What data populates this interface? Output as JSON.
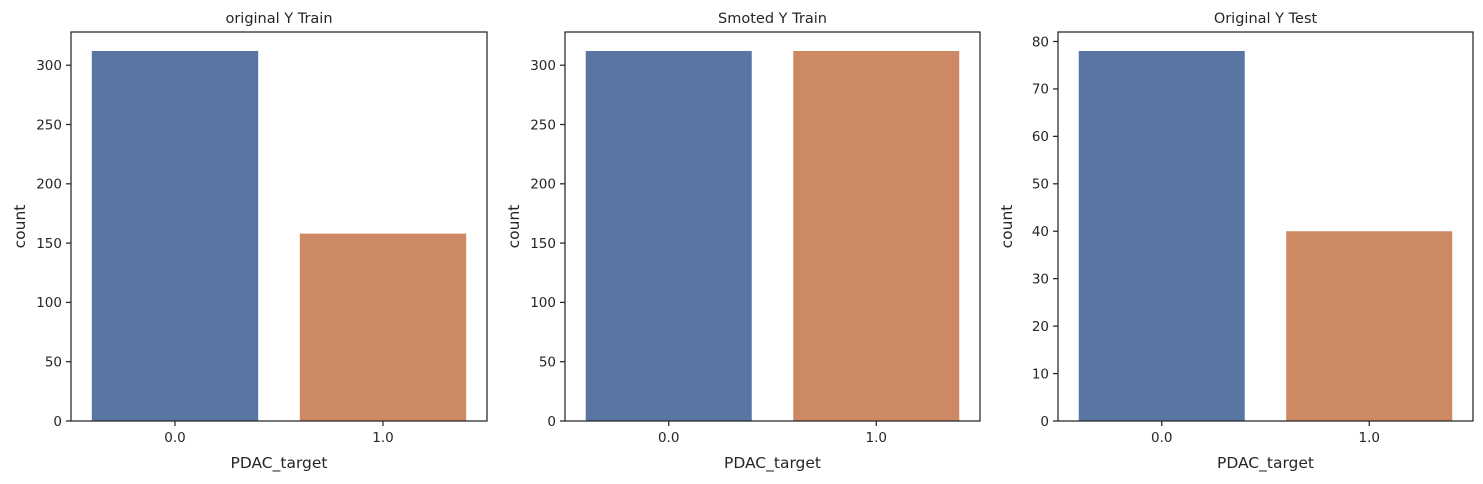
{
  "chart_data": [
    {
      "type": "bar",
      "title": "original Y Train",
      "xlabel": "PDAC_target",
      "ylabel": "count",
      "categories": [
        "0.0",
        "1.0"
      ],
      "values": [
        312,
        158
      ],
      "ylim": [
        0,
        328
      ],
      "yticks": [
        0,
        50,
        100,
        150,
        200,
        250,
        300
      ],
      "colors": [
        "#5975a4",
        "#cc8963"
      ],
      "grid": false
    },
    {
      "type": "bar",
      "title": "Smoted Y Train",
      "xlabel": "PDAC_target",
      "ylabel": "count",
      "categories": [
        "0.0",
        "1.0"
      ],
      "values": [
        312,
        312
      ],
      "ylim": [
        0,
        328
      ],
      "yticks": [
        0,
        50,
        100,
        150,
        200,
        250,
        300
      ],
      "colors": [
        "#5975a4",
        "#cc8963"
      ],
      "grid": false
    },
    {
      "type": "bar",
      "title": "Original Y Test",
      "xlabel": "PDAC_target",
      "ylabel": "count",
      "categories": [
        "0.0",
        "1.0"
      ],
      "values": [
        78,
        40
      ],
      "ylim": [
        0,
        82
      ],
      "yticks": [
        0,
        10,
        20,
        30,
        40,
        50,
        60,
        70,
        80
      ],
      "colors": [
        "#5975a4",
        "#cc8963"
      ],
      "grid": false
    }
  ]
}
